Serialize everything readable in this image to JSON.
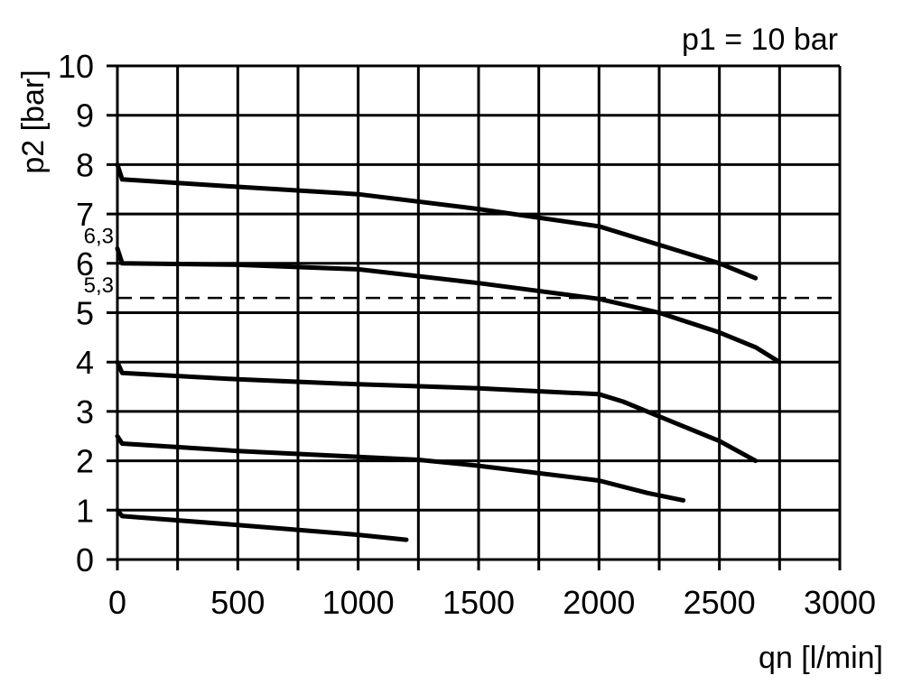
{
  "chart_data": {
    "type": "line",
    "title": "",
    "annotation": "p1 = 10 bar",
    "xlabel": "qn [l/min]",
    "ylabel": "p2 [bar]",
    "xlim": [
      0,
      3000
    ],
    "ylim": [
      0,
      10
    ],
    "xticks": [
      0,
      500,
      1000,
      1500,
      2000,
      2500,
      3000
    ],
    "yticks": [
      0,
      1,
      2,
      3,
      4,
      5,
      6,
      7,
      8,
      9,
      10
    ],
    "grid": true,
    "grid_x_step": 250,
    "grid_y_step": 1,
    "line_color": "#000000",
    "reference_line": {
      "y": 5.3,
      "style": "dashed"
    },
    "labels": [
      {
        "text": "6,3",
        "y": 6.3
      },
      {
        "text": "5,3",
        "y": 5.3
      }
    ],
    "series": [
      {
        "x": [
          0,
          20,
          500,
          1000,
          1500,
          2000,
          2100,
          2500,
          2650
        ],
        "y": [
          8.0,
          7.7,
          7.55,
          7.4,
          7.1,
          6.75,
          6.6,
          6.0,
          5.7
        ]
      },
      {
        "x": [
          0,
          20,
          500,
          1000,
          1500,
          2000,
          2250,
          2500,
          2650,
          2750
        ],
        "y": [
          6.3,
          6.0,
          5.97,
          5.88,
          5.6,
          5.28,
          5.0,
          4.6,
          4.3,
          4.0
        ]
      },
      {
        "x": [
          0,
          20,
          500,
          1000,
          1500,
          2000,
          2100,
          2250,
          2500,
          2650
        ],
        "y": [
          4.0,
          3.78,
          3.65,
          3.55,
          3.47,
          3.35,
          3.2,
          2.9,
          2.4,
          2.0
        ]
      },
      {
        "x": [
          0,
          20,
          500,
          1000,
          1250,
          1500,
          2000,
          2200,
          2350
        ],
        "y": [
          2.5,
          2.35,
          2.2,
          2.08,
          2.02,
          1.9,
          1.6,
          1.35,
          1.2
        ]
      },
      {
        "x": [
          0,
          20,
          500,
          1000,
          1200
        ],
        "y": [
          1.0,
          0.88,
          0.7,
          0.5,
          0.4
        ]
      }
    ]
  }
}
